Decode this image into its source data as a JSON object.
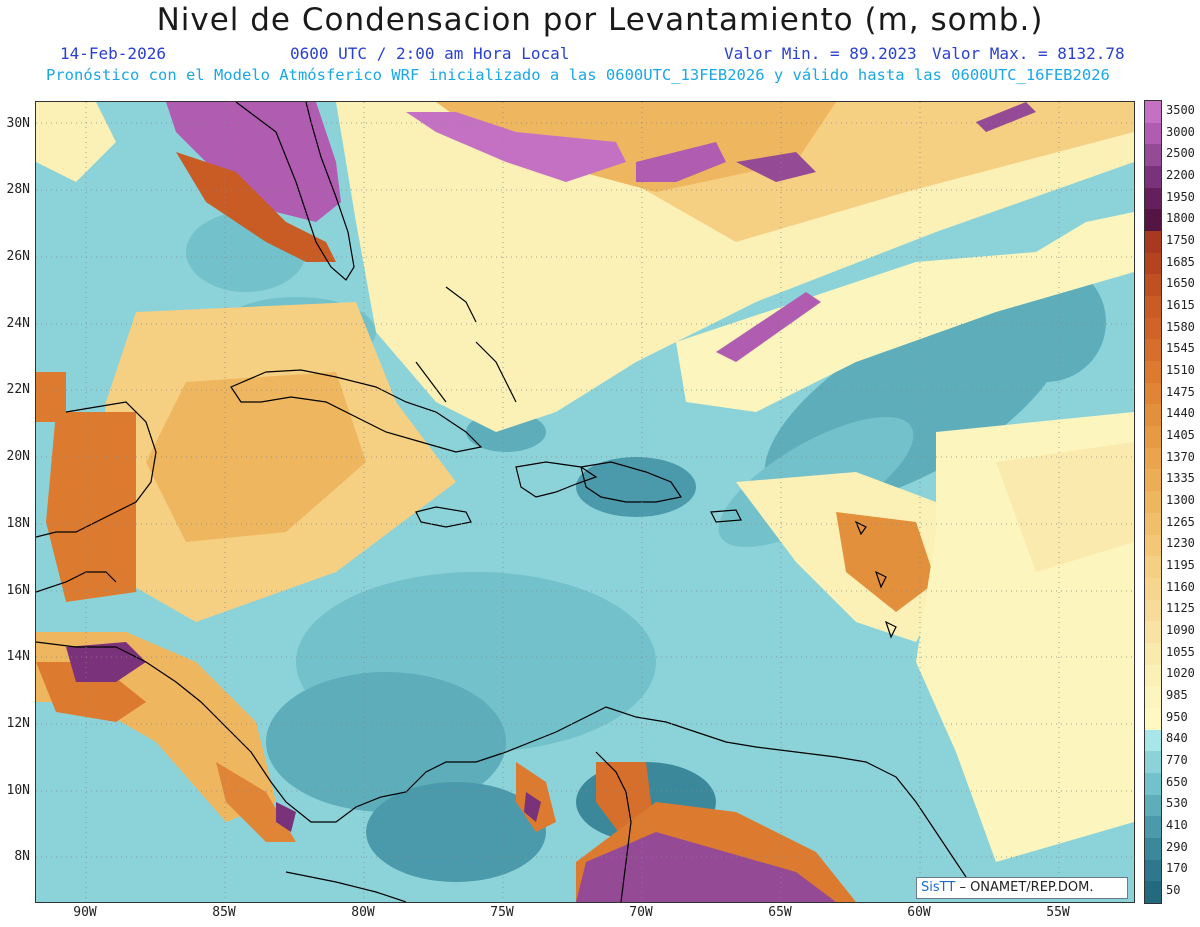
{
  "title": "Nivel de Condensacion por Levantamiento (m, somb.)",
  "date": "14-Feb-2026",
  "time": "0600 UTC / 2:00 am Hora Local",
  "valmin": "Valor Min. = 89.2023",
  "valmax": "Valor Max. = 8132.78",
  "model_info": "Pronóstico con el Modelo Atmósferico WRF inicializado a las 0600UTC_13FEB2026 y válido hasta las  0600UTC_16FEB2026",
  "lat_labels": [
    "30N",
    "28N",
    "26N",
    "24N",
    "22N",
    "20N",
    "18N",
    "16N",
    "14N",
    "12N",
    "10N",
    "8N"
  ],
  "lon_labels": [
    "90W",
    "85W",
    "80W",
    "75W",
    "70W",
    "65W",
    "60W",
    "55W"
  ],
  "colorbar": {
    "levels": [
      "3500",
      "3000",
      "2500",
      "2200",
      "1950",
      "1800",
      "1750",
      "1685",
      "1650",
      "1615",
      "1580",
      "1545",
      "1510",
      "1475",
      "1440",
      "1405",
      "1370",
      "1335",
      "1300",
      "1265",
      "1230",
      "1195",
      "1160",
      "1125",
      "1090",
      "1055",
      "1020",
      "985",
      "950",
      "840",
      "770",
      "650",
      "530",
      "410",
      "290",
      "170",
      "50"
    ],
    "colors": [
      "#c471c4",
      "#b05cb0",
      "#954a95",
      "#7a327a",
      "#651f5c",
      "#541545",
      "#a8381f",
      "#b4441f",
      "#bf5022",
      "#c95b25",
      "#d06428",
      "#d66f2c",
      "#dc7a30",
      "#e08535",
      "#e3903c",
      "#e69a44",
      "#e9a44d",
      "#ecad56",
      "#efb660",
      "#f1bf6b",
      "#f3c776",
      "#f5cf82",
      "#f6d68e",
      "#f7dc99",
      "#f9e2a4",
      "#faeaae",
      "#fbf0b6",
      "#fcf5bd",
      "#fff8c0",
      "#a9e6ea",
      "#8cd3d9",
      "#73c1ca",
      "#5dadbb",
      "#4b9aab",
      "#3b889b",
      "#2e778c",
      "#236a7f"
    ]
  },
  "credit": {
    "brand": "SisTT",
    "text": "– ONAMET/REP.DOM."
  },
  "colors": {
    "land_line": "#000000",
    "grid": "#888888"
  }
}
